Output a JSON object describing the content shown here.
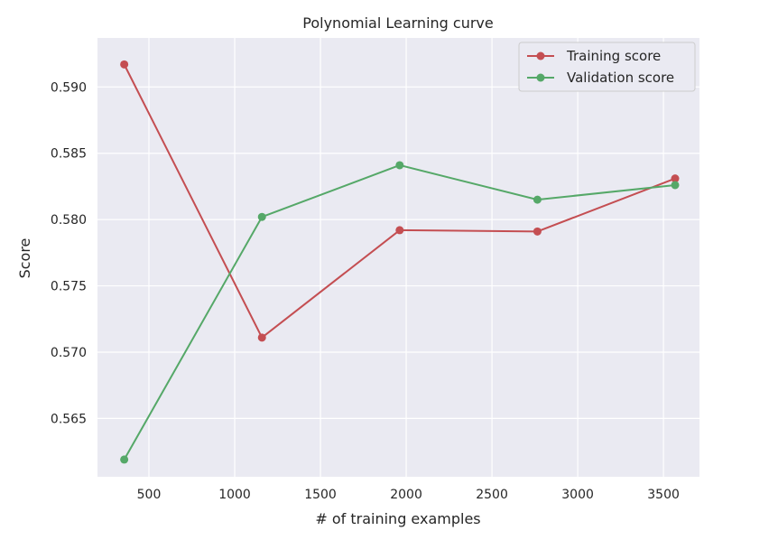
{
  "chart_data": {
    "type": "line",
    "title": "Polynomial Learning curve",
    "xlabel": "# of training examples",
    "ylabel": "Score",
    "xlim": [
      200,
      3710
    ],
    "ylim": [
      0.5606,
      0.5937
    ],
    "xticks": [
      500,
      1000,
      1500,
      2000,
      2500,
      3000,
      3500
    ],
    "xtick_labels": [
      "500",
      "1000",
      "1500",
      "2000",
      "2500",
      "3000",
      "3500"
    ],
    "yticks": [
      0.565,
      0.57,
      0.575,
      0.58,
      0.585,
      0.59
    ],
    "ytick_labels": [
      "0.565",
      "0.570",
      "0.575",
      "0.580",
      "0.585",
      "0.590"
    ],
    "grid": true,
    "legend_position": "top-right",
    "x": [
      356,
      1159,
      1962,
      2765,
      3568
    ],
    "series": [
      {
        "name": "Training score",
        "color": "#c44e52",
        "values": [
          0.5917,
          0.5711,
          0.5792,
          0.5791,
          0.5831
        ]
      },
      {
        "name": "Validation score",
        "color": "#55a868",
        "values": [
          0.5619,
          0.5802,
          0.5841,
          0.5815,
          0.5826
        ]
      }
    ]
  },
  "style": {
    "plot_background": "#eaeaf2",
    "grid_color": "#ffffff",
    "text_color": "#262626"
  }
}
